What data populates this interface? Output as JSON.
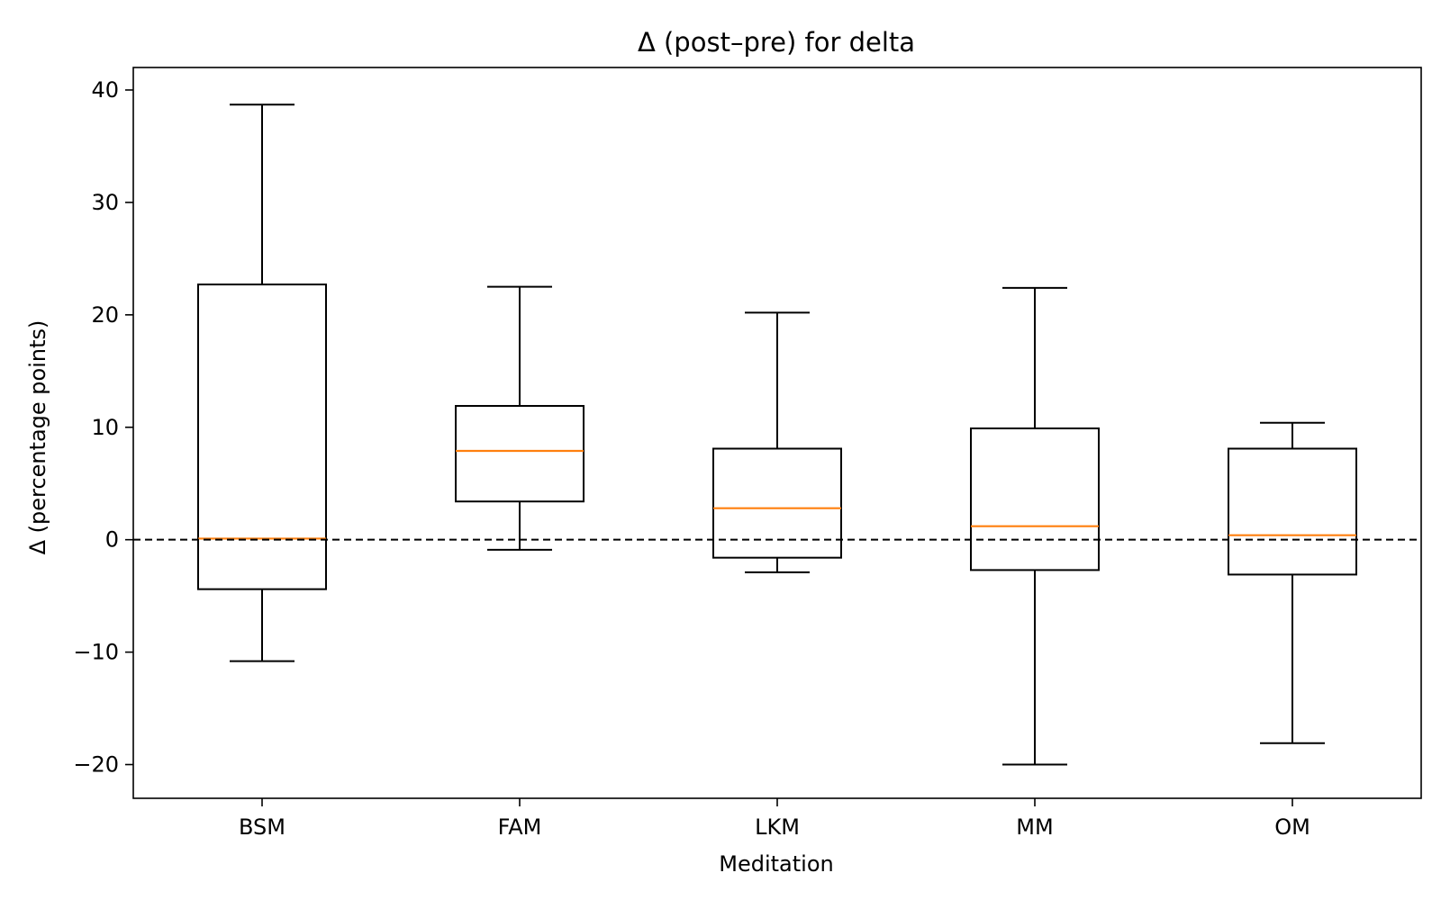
{
  "chart_data": {
    "type": "boxplot",
    "title": "Δ (post–pre) for delta",
    "xlabel": "Meditation",
    "ylabel": "Δ (percentage points)",
    "ylim": [
      -23,
      42
    ],
    "yticks": [
      -20,
      -10,
      0,
      10,
      20,
      30,
      40
    ],
    "ytick_labels": [
      "−20",
      "−10",
      "0",
      "10",
      "20",
      "30",
      "40"
    ],
    "categories": [
      "BSM",
      "FAM",
      "LKM",
      "MM",
      "OM"
    ],
    "boxes": [
      {
        "label": "BSM",
        "whisker_low": -10.8,
        "q1": -4.4,
        "median": 0.1,
        "q3": 22.7,
        "whisker_high": 38.7
      },
      {
        "label": "FAM",
        "whisker_low": -0.9,
        "q1": 3.4,
        "median": 7.9,
        "q3": 11.9,
        "whisker_high": 22.5
      },
      {
        "label": "LKM",
        "whisker_low": -2.9,
        "q1": -1.6,
        "median": 2.8,
        "q3": 8.1,
        "whisker_high": 20.2
      },
      {
        "label": "MM",
        "whisker_low": -20.0,
        "q1": -2.7,
        "median": 1.2,
        "q3": 9.9,
        "whisker_high": 22.4
      },
      {
        "label": "OM",
        "whisker_low": -18.1,
        "q1": -3.1,
        "median": 0.4,
        "q3": 8.1,
        "whisker_high": 10.4
      }
    ],
    "reference_line": {
      "y": 0,
      "style": "dashed",
      "color": "#000000"
    },
    "box_color": "#000000",
    "median_color": "#ff7f0e",
    "grid": false,
    "legend": "none"
  }
}
